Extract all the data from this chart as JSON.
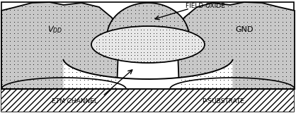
{
  "bg_color": "#ffffff",
  "figsize": [
    4.18,
    1.6
  ],
  "dpi": 100,
  "dot_gray": "#aaaaaa",
  "dark_gray": "#888888",
  "labels": {
    "vdd": "$V_{DD}$",
    "gnd": "GND",
    "field_oxide": "FIELD OXIDE",
    "etm_channel": "ETM CHANNEL",
    "p_substrate": "P-SUBSTRATE"
  }
}
